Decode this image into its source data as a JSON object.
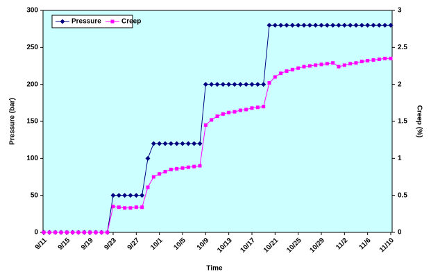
{
  "chart_data": {
    "type": "line",
    "x_label": "Time",
    "y_label": "Pressure (bar)",
    "y2_label": "Creep (%)",
    "categories": [
      "9/11",
      null,
      null,
      null,
      "9/15",
      null,
      null,
      null,
      "9/19",
      null,
      null,
      null,
      "9/23",
      null,
      null,
      null,
      "9/27",
      null,
      null,
      null,
      "10/1",
      null,
      null,
      null,
      "10/5",
      null,
      null,
      null,
      "10/9",
      null,
      null,
      null,
      "10/13",
      null,
      null,
      null,
      "10/17",
      null,
      null,
      null,
      "10/21",
      null,
      null,
      null,
      "10/25",
      null,
      null,
      null,
      "10/29",
      null,
      null,
      null,
      "11/2",
      null,
      null,
      null,
      "11/6",
      null,
      null,
      null,
      "11/10"
    ],
    "series": [
      {
        "name": "Pressure",
        "color": "#000080",
        "axis": "y",
        "values": [
          0,
          0,
          0,
          0,
          0,
          0,
          0,
          0,
          0,
          0,
          0,
          0,
          50,
          50,
          50,
          50,
          50,
          50,
          100,
          120,
          120,
          120,
          120,
          120,
          120,
          120,
          120,
          120,
          200,
          200,
          200,
          200,
          200,
          200,
          200,
          200,
          200,
          200,
          200,
          280,
          280,
          280,
          280,
          280,
          280,
          280,
          280,
          280,
          280,
          280,
          280,
          280,
          280,
          280,
          280,
          280,
          280,
          280,
          280,
          280,
          280
        ]
      },
      {
        "name": "Creep",
        "color": "#ff00ff",
        "axis": "y2",
        "values": [
          0,
          0,
          0,
          0,
          0,
          0,
          0,
          0,
          0,
          0,
          0,
          0,
          0.35,
          0.34,
          0.33,
          0.33,
          0.34,
          0.34,
          0.61,
          0.75,
          0.79,
          0.82,
          0.85,
          0.86,
          0.87,
          0.88,
          0.89,
          0.9,
          1.45,
          1.52,
          1.57,
          1.6,
          1.62,
          1.63,
          1.65,
          1.66,
          1.68,
          1.69,
          1.7,
          2.02,
          2.1,
          2.15,
          2.18,
          2.2,
          2.22,
          2.24,
          2.25,
          2.26,
          2.27,
          2.28,
          2.29,
          2.24,
          2.26,
          2.28,
          2.29,
          2.31,
          2.32,
          2.33,
          2.34,
          2.35,
          2.35
        ]
      }
    ],
    "ylim": [
      0,
      300
    ],
    "yticks": [
      0,
      50,
      100,
      150,
      200,
      250,
      300
    ],
    "y2lim": [
      0,
      3
    ],
    "y2ticks": [
      0,
      0.5,
      1,
      1.5,
      2,
      2.5,
      3
    ],
    "background": "#ccffff",
    "legend": "upper left"
  }
}
